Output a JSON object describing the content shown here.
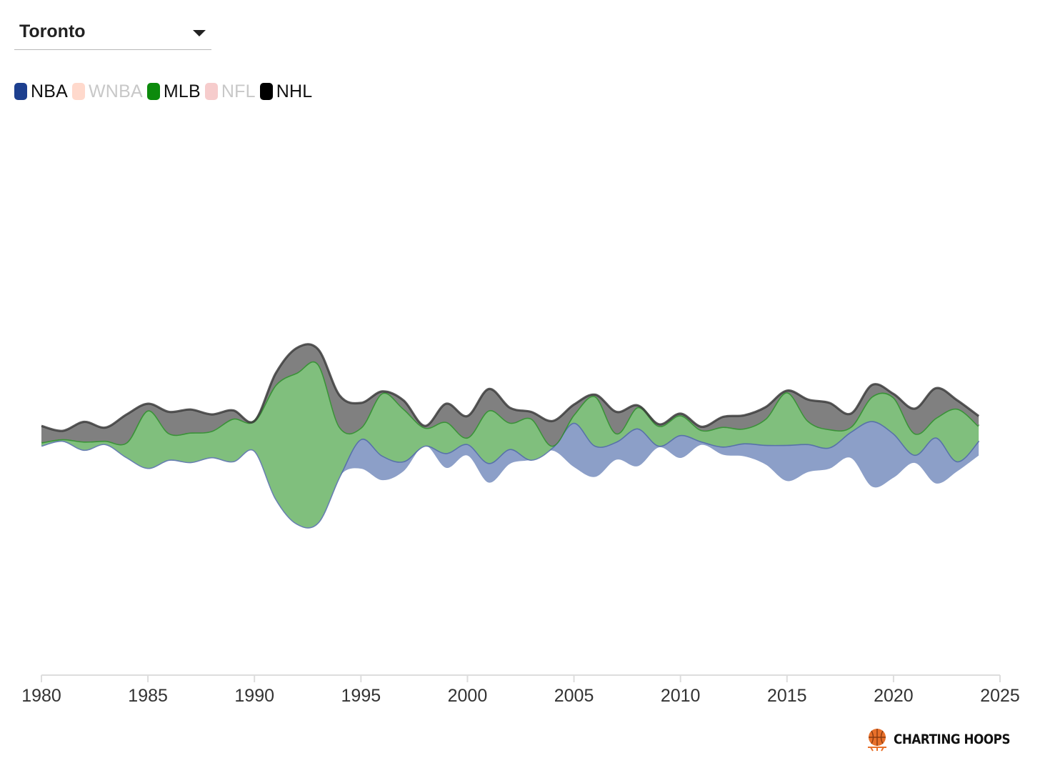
{
  "selector": {
    "city": "Toronto"
  },
  "legend": [
    {
      "name": "NBA",
      "color": "#1d3f8f",
      "active": true
    },
    {
      "name": "WNBA",
      "color": "#ffd9cc",
      "active": false
    },
    {
      "name": "MLB",
      "color": "#0c8a0c",
      "active": true
    },
    {
      "name": "NFL",
      "color": "#f6cccc",
      "active": false
    },
    {
      "name": "NHL",
      "color": "#000000",
      "active": true
    }
  ],
  "chart_data": {
    "type": "area",
    "subtype": "streamgraph",
    "title": "",
    "xlabel": "",
    "ylabel": "",
    "xlim": [
      1980,
      2025
    ],
    "x_ticks": [
      1980,
      1985,
      1990,
      1995,
      2000,
      2005,
      2010,
      2015,
      2020,
      2025
    ],
    "x": [
      1980,
      1981,
      1982,
      1983,
      1984,
      1985,
      1986,
      1987,
      1988,
      1989,
      1990,
      1991,
      1992,
      1993,
      1994,
      1995,
      1996,
      1997,
      1998,
      1999,
      2000,
      2001,
      2002,
      2003,
      2004,
      2005,
      2006,
      2007,
      2008,
      2009,
      2010,
      2011,
      2012,
      2013,
      2014,
      2015,
      2016,
      2017,
      2018,
      2019,
      2020,
      2021,
      2022,
      2023,
      2024
    ],
    "series": [
      {
        "name": "NBA",
        "color": "#8c9fc8",
        "line": "#4e6aa3",
        "values": [
          0,
          0,
          0,
          0,
          0,
          0,
          0,
          0,
          0,
          0,
          0,
          0,
          0,
          0,
          0,
          1.8,
          1.5,
          0.6,
          0,
          0.9,
          0.7,
          1.2,
          0.9,
          0,
          0.2,
          2.7,
          1.9,
          1.1,
          2.3,
          0.1,
          1.4,
          0.2,
          0.5,
          0.8,
          1.2,
          2.2,
          1.7,
          1.3,
          1.6,
          4.0,
          2.7,
          0.5,
          2.8,
          0.6,
          0.9
        ]
      },
      {
        "name": "MLB",
        "color": "#80bf7d",
        "line": "#2e8a2c",
        "values": [
          0.2,
          0.1,
          0.5,
          0.2,
          0.9,
          3.5,
          1.6,
          1.8,
          1.6,
          2.6,
          1.8,
          6.9,
          9.2,
          9.6,
          3.0,
          0.7,
          3.8,
          3.2,
          1.1,
          1.9,
          0.4,
          3.2,
          1.6,
          2.5,
          0.1,
          0.5,
          3.0,
          0.5,
          1.3,
          1.2,
          1.2,
          0.7,
          1.2,
          0.9,
          1.6,
          3.2,
          1.4,
          1.1,
          0.3,
          1.5,
          2.2,
          1.3,
          1.2,
          3.2,
          0.9
        ]
      },
      {
        "name": "NHL",
        "color": "#808080",
        "line": "#3d3d3d",
        "values": [
          1.0,
          0.5,
          1.2,
          0.8,
          1.7,
          0.4,
          1.3,
          1.4,
          1.0,
          0.5,
          0,
          0.7,
          1.5,
          0.9,
          1.9,
          1.5,
          0.1,
          0.5,
          0.1,
          1.1,
          1.3,
          1.3,
          0.9,
          0.4,
          1.5,
          0.6,
          0.1,
          1.3,
          0.1,
          0.1,
          0.1,
          0.2,
          0.6,
          0.8,
          0.7,
          0.1,
          1.3,
          1.6,
          0.8,
          0.7,
          0.2,
          1.5,
          1.8,
          0.5,
          0.6
        ]
      }
    ],
    "legend_position": "top-left",
    "grid": false
  },
  "brand": {
    "name": "CHARTING HOOPS"
  }
}
